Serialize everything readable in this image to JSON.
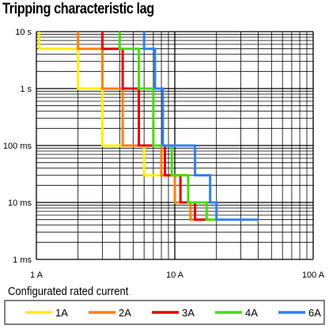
{
  "chart_data": {
    "type": "line",
    "title": "Tripping characteristic lag",
    "xlabel": "",
    "ylabel": "",
    "x_scale": "log",
    "y_scale": "log",
    "xlim": [
      1,
      100
    ],
    "ylim": [
      0.001,
      10
    ],
    "x_ticks": [
      {
        "value": 1,
        "label": "1 A"
      },
      {
        "value": 10,
        "label": "10 A"
      },
      {
        "value": 100,
        "label": "100 A"
      }
    ],
    "y_ticks": [
      {
        "value": 10,
        "label": "10 s"
      },
      {
        "value": 1,
        "label": "1 s"
      },
      {
        "value": 0.1,
        "label": "100 ms"
      },
      {
        "value": 0.01,
        "label": "10 ms"
      },
      {
        "value": 0.001,
        "label": "1 ms"
      }
    ],
    "grid": true,
    "legend_title": "Configurated rated current",
    "legend_position": "bottom",
    "series": [
      {
        "name": "1A",
        "color": "#ffee00",
        "x": [
          1.05,
          1.05,
          2.0,
          2.0,
          3.0,
          3.0,
          6.0,
          6.0,
          10.0,
          10.0,
          13.0
        ],
        "y": [
          10,
          5,
          5,
          1,
          1,
          0.1,
          0.1,
          0.03,
          0.03,
          0.01,
          0.01
        ]
      },
      {
        "name": "2A",
        "color": "#ff8000",
        "x": [
          2.0,
          2.0,
          3.0,
          3.0,
          4.2,
          4.2,
          6.0,
          6.0,
          8.0,
          8.0,
          10.0,
          10.0,
          13.0,
          13.0,
          16.0
        ],
        "y": [
          10,
          5,
          5,
          1,
          1,
          0.1,
          0.1,
          0.1,
          0.1,
          0.03,
          0.03,
          0.01,
          0.01,
          0.005,
          0.005
        ]
      },
      {
        "name": "3A",
        "color": "#e00000",
        "x": [
          3.0,
          3.0,
          4.2,
          4.2,
          5.5,
          5.5,
          8.5,
          8.5,
          11.0,
          11.0,
          14.0,
          14.0,
          17.0
        ],
        "y": [
          10,
          5,
          5,
          1,
          1,
          0.1,
          0.1,
          0.03,
          0.03,
          0.01,
          0.01,
          0.005,
          0.005
        ]
      },
      {
        "name": "4A",
        "color": "#44dd00",
        "x": [
          4.0,
          4.0,
          5.5,
          5.5,
          7.0,
          7.0,
          9.5,
          9.5,
          12.5,
          12.5,
          17.0,
          17.0,
          20.0
        ],
        "y": [
          10,
          5,
          5,
          1,
          1,
          0.1,
          0.1,
          0.03,
          0.03,
          0.01,
          0.01,
          0.005,
          0.005
        ]
      },
      {
        "name": "6A",
        "color": "#3080ee",
        "x": [
          6.0,
          6.0,
          7.2,
          7.2,
          8.2,
          8.2,
          14.0,
          14.0,
          18.0,
          18.0,
          20.0,
          20.0,
          40.0
        ],
        "y": [
          10,
          5,
          5,
          1,
          1,
          0.1,
          0.1,
          0.03,
          0.03,
          0.01,
          0.01,
          0.005,
          0.005
        ]
      }
    ]
  }
}
